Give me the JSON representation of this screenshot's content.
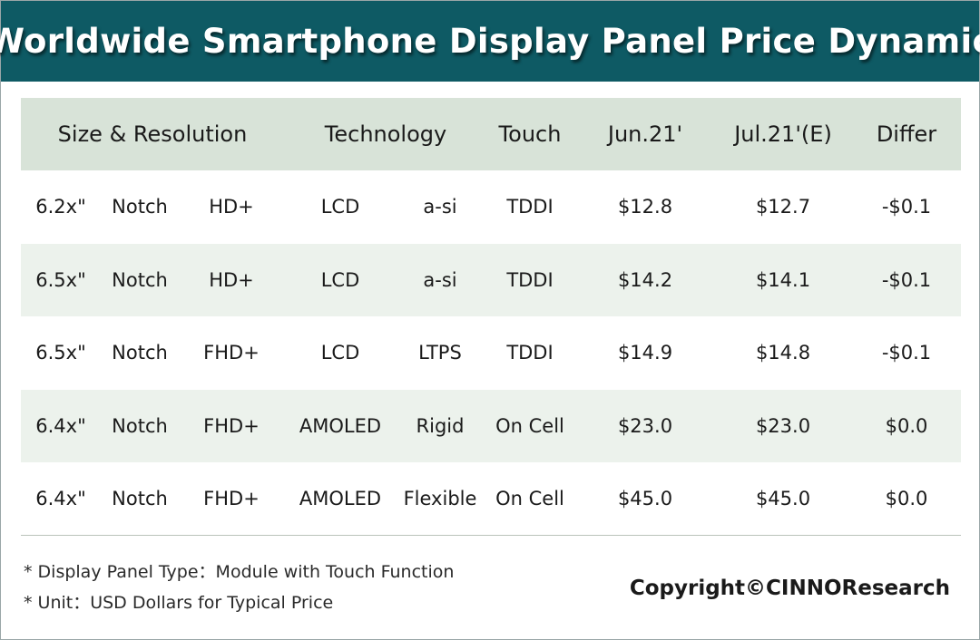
{
  "title": "Worldwide Smartphone Display Panel Price Dynamic",
  "chart_data": {
    "type": "table",
    "headers": [
      "Size & Resolution",
      "Technology",
      "Touch",
      "Jun.21'",
      "Jul.21'(E)",
      "Differ"
    ],
    "rows": [
      {
        "size": "6.2x\"",
        "form": "Notch",
        "res": "HD+",
        "tech": "LCD",
        "sub": "a-si",
        "touch": "TDDI",
        "jun": "$12.8",
        "jul": "$12.7",
        "diff": "-$0.1"
      },
      {
        "size": "6.5x\"",
        "form": "Notch",
        "res": "HD+",
        "tech": "LCD",
        "sub": "a-si",
        "touch": "TDDI",
        "jun": "$14.2",
        "jul": "$14.1",
        "diff": "-$0.1"
      },
      {
        "size": "6.5x\"",
        "form": "Notch",
        "res": "FHD+",
        "tech": "LCD",
        "sub": "LTPS",
        "touch": "TDDI",
        "jun": "$14.9",
        "jul": "$14.8",
        "diff": "-$0.1"
      },
      {
        "size": "6.4x\"",
        "form": "Notch",
        "res": "FHD+",
        "tech": "AMOLED",
        "sub": "Rigid",
        "touch": "On Cell",
        "jun": "$23.0",
        "jul": "$23.0",
        "diff": "$0.0"
      },
      {
        "size": "6.4x\"",
        "form": "Notch",
        "res": "FHD+",
        "tech": "AMOLED",
        "sub": "Flexible",
        "touch": "On Cell",
        "jun": "$45.0",
        "jul": "$45.0",
        "diff": "$0.0"
      }
    ]
  },
  "notes": [
    "* Display Panel Type：Module with Touch Function",
    "* Unit：USD Dollars for Typical Price"
  ],
  "copyright": "Copyright©CINNOResearch",
  "colors": {
    "title_bg": "#0e5a64",
    "header_bg": "#d8e3d8",
    "row_shade": "#ecf2ec"
  }
}
